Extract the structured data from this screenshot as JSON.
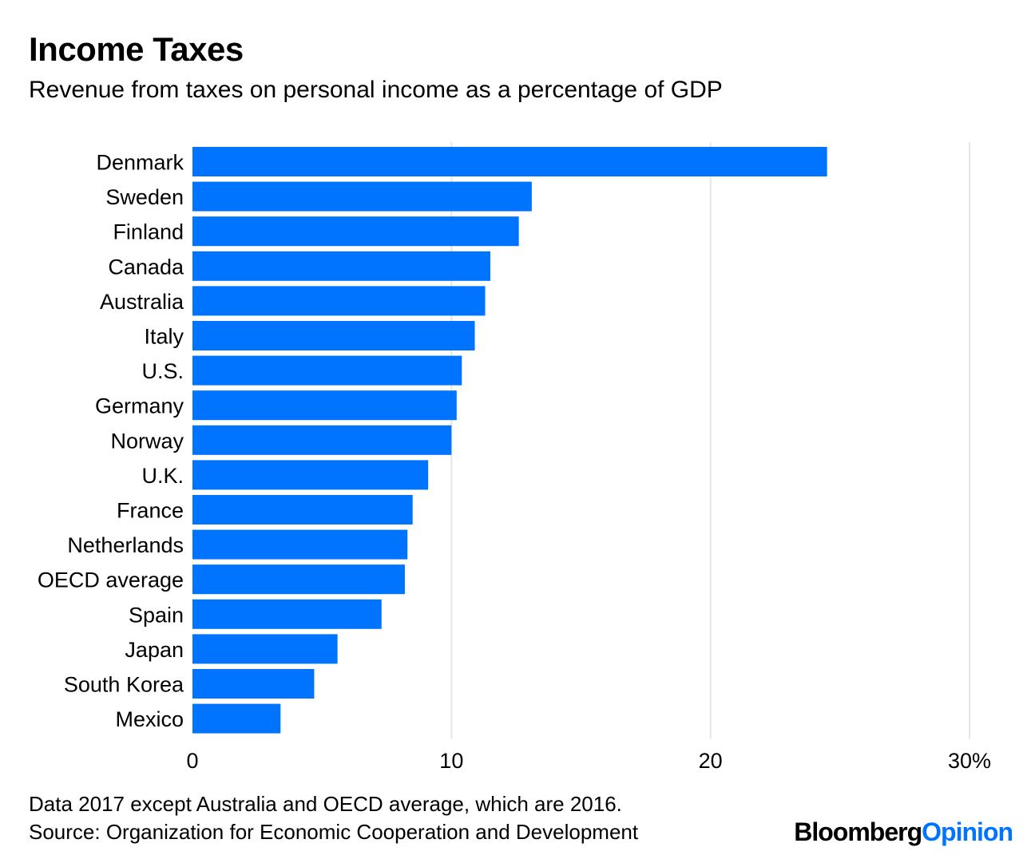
{
  "title": "Income Taxes",
  "subtitle": "Revenue from taxes on personal income as a percentage of GDP",
  "chart_data": {
    "type": "bar",
    "orientation": "horizontal",
    "categories": [
      "Denmark",
      "Sweden",
      "Finland",
      "Canada",
      "Australia",
      "Italy",
      "U.S.",
      "Germany",
      "Norway",
      "U.K.",
      "France",
      "Netherlands",
      "OECD average",
      "Spain",
      "Japan",
      "South Korea",
      "Mexico"
    ],
    "values": [
      24.5,
      13.1,
      12.6,
      11.5,
      11.3,
      10.9,
      10.4,
      10.2,
      10.0,
      9.1,
      8.5,
      8.3,
      8.2,
      7.3,
      5.6,
      4.7,
      3.4
    ],
    "xlim": [
      0,
      30
    ],
    "xticks": [
      0,
      10,
      20,
      30
    ],
    "xtick_labels": [
      "0",
      "10",
      "20",
      "30%"
    ],
    "grid": "vertical",
    "bar_color": "#0073ff"
  },
  "notes": {
    "line1": "Data 2017 except Australia and OECD average, which are 2016.",
    "line2": "Source: Organization for Economic Cooperation and Development"
  },
  "logo": {
    "brand": "Bloomberg",
    "product": "Opinion"
  }
}
